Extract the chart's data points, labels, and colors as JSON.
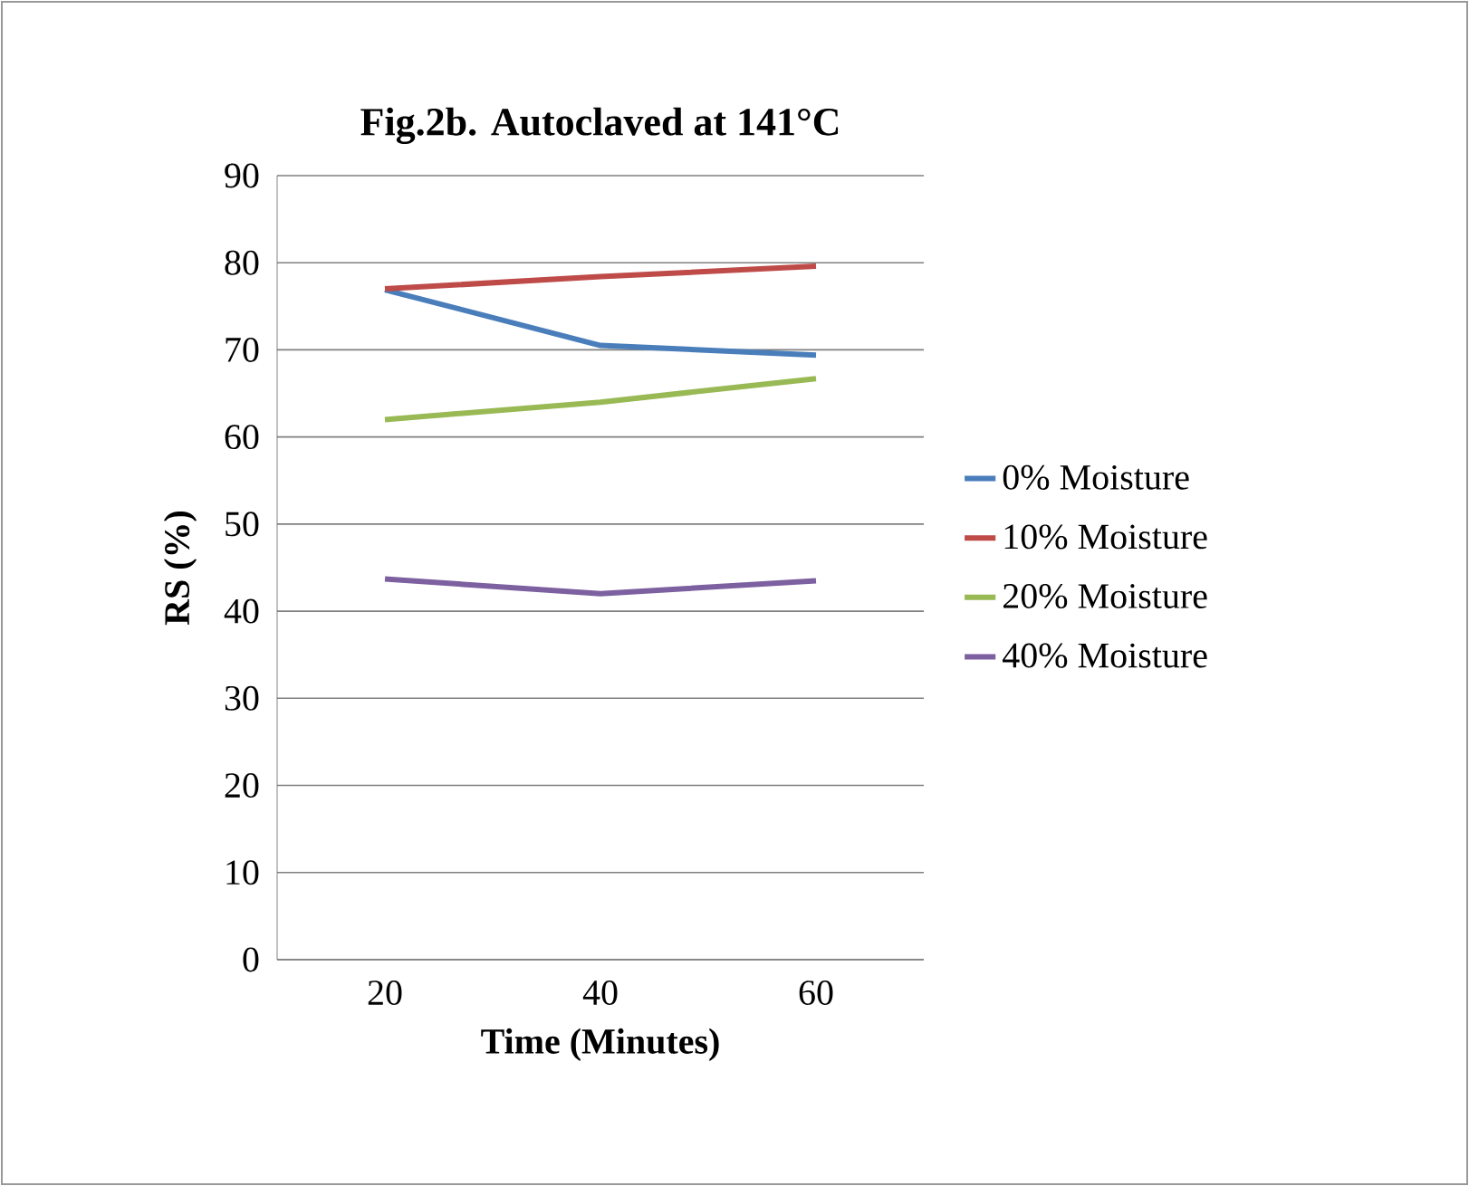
{
  "chart_data": {
    "type": "line",
    "title": "Fig.2b. Autoclaved at 141°C",
    "xlabel": "Time (Minutes)",
    "ylabel": "RS (%)",
    "categories": [
      "20",
      "40",
      "60"
    ],
    "series": [
      {
        "name": "0% Moisture",
        "color": "#4a7ebb",
        "values": [
          76.9,
          70.5,
          69.4
        ]
      },
      {
        "name": "10% Moisture",
        "color": "#be4b48",
        "values": [
          77,
          78.4,
          79.6
        ]
      },
      {
        "name": "20% Moisture",
        "color": "#98b954",
        "values": [
          62,
          64,
          66.7
        ]
      },
      {
        "name": "40% Moisture",
        "color": "#7d60a0",
        "values": [
          43.7,
          42,
          43.5
        ]
      }
    ],
    "ylim": [
      0,
      90
    ],
    "yticks": [
      0,
      10,
      20,
      30,
      40,
      50,
      60,
      70,
      80,
      90
    ],
    "grid": "y",
    "legend": "right",
    "marker": "none",
    "line_style": "solid"
  }
}
